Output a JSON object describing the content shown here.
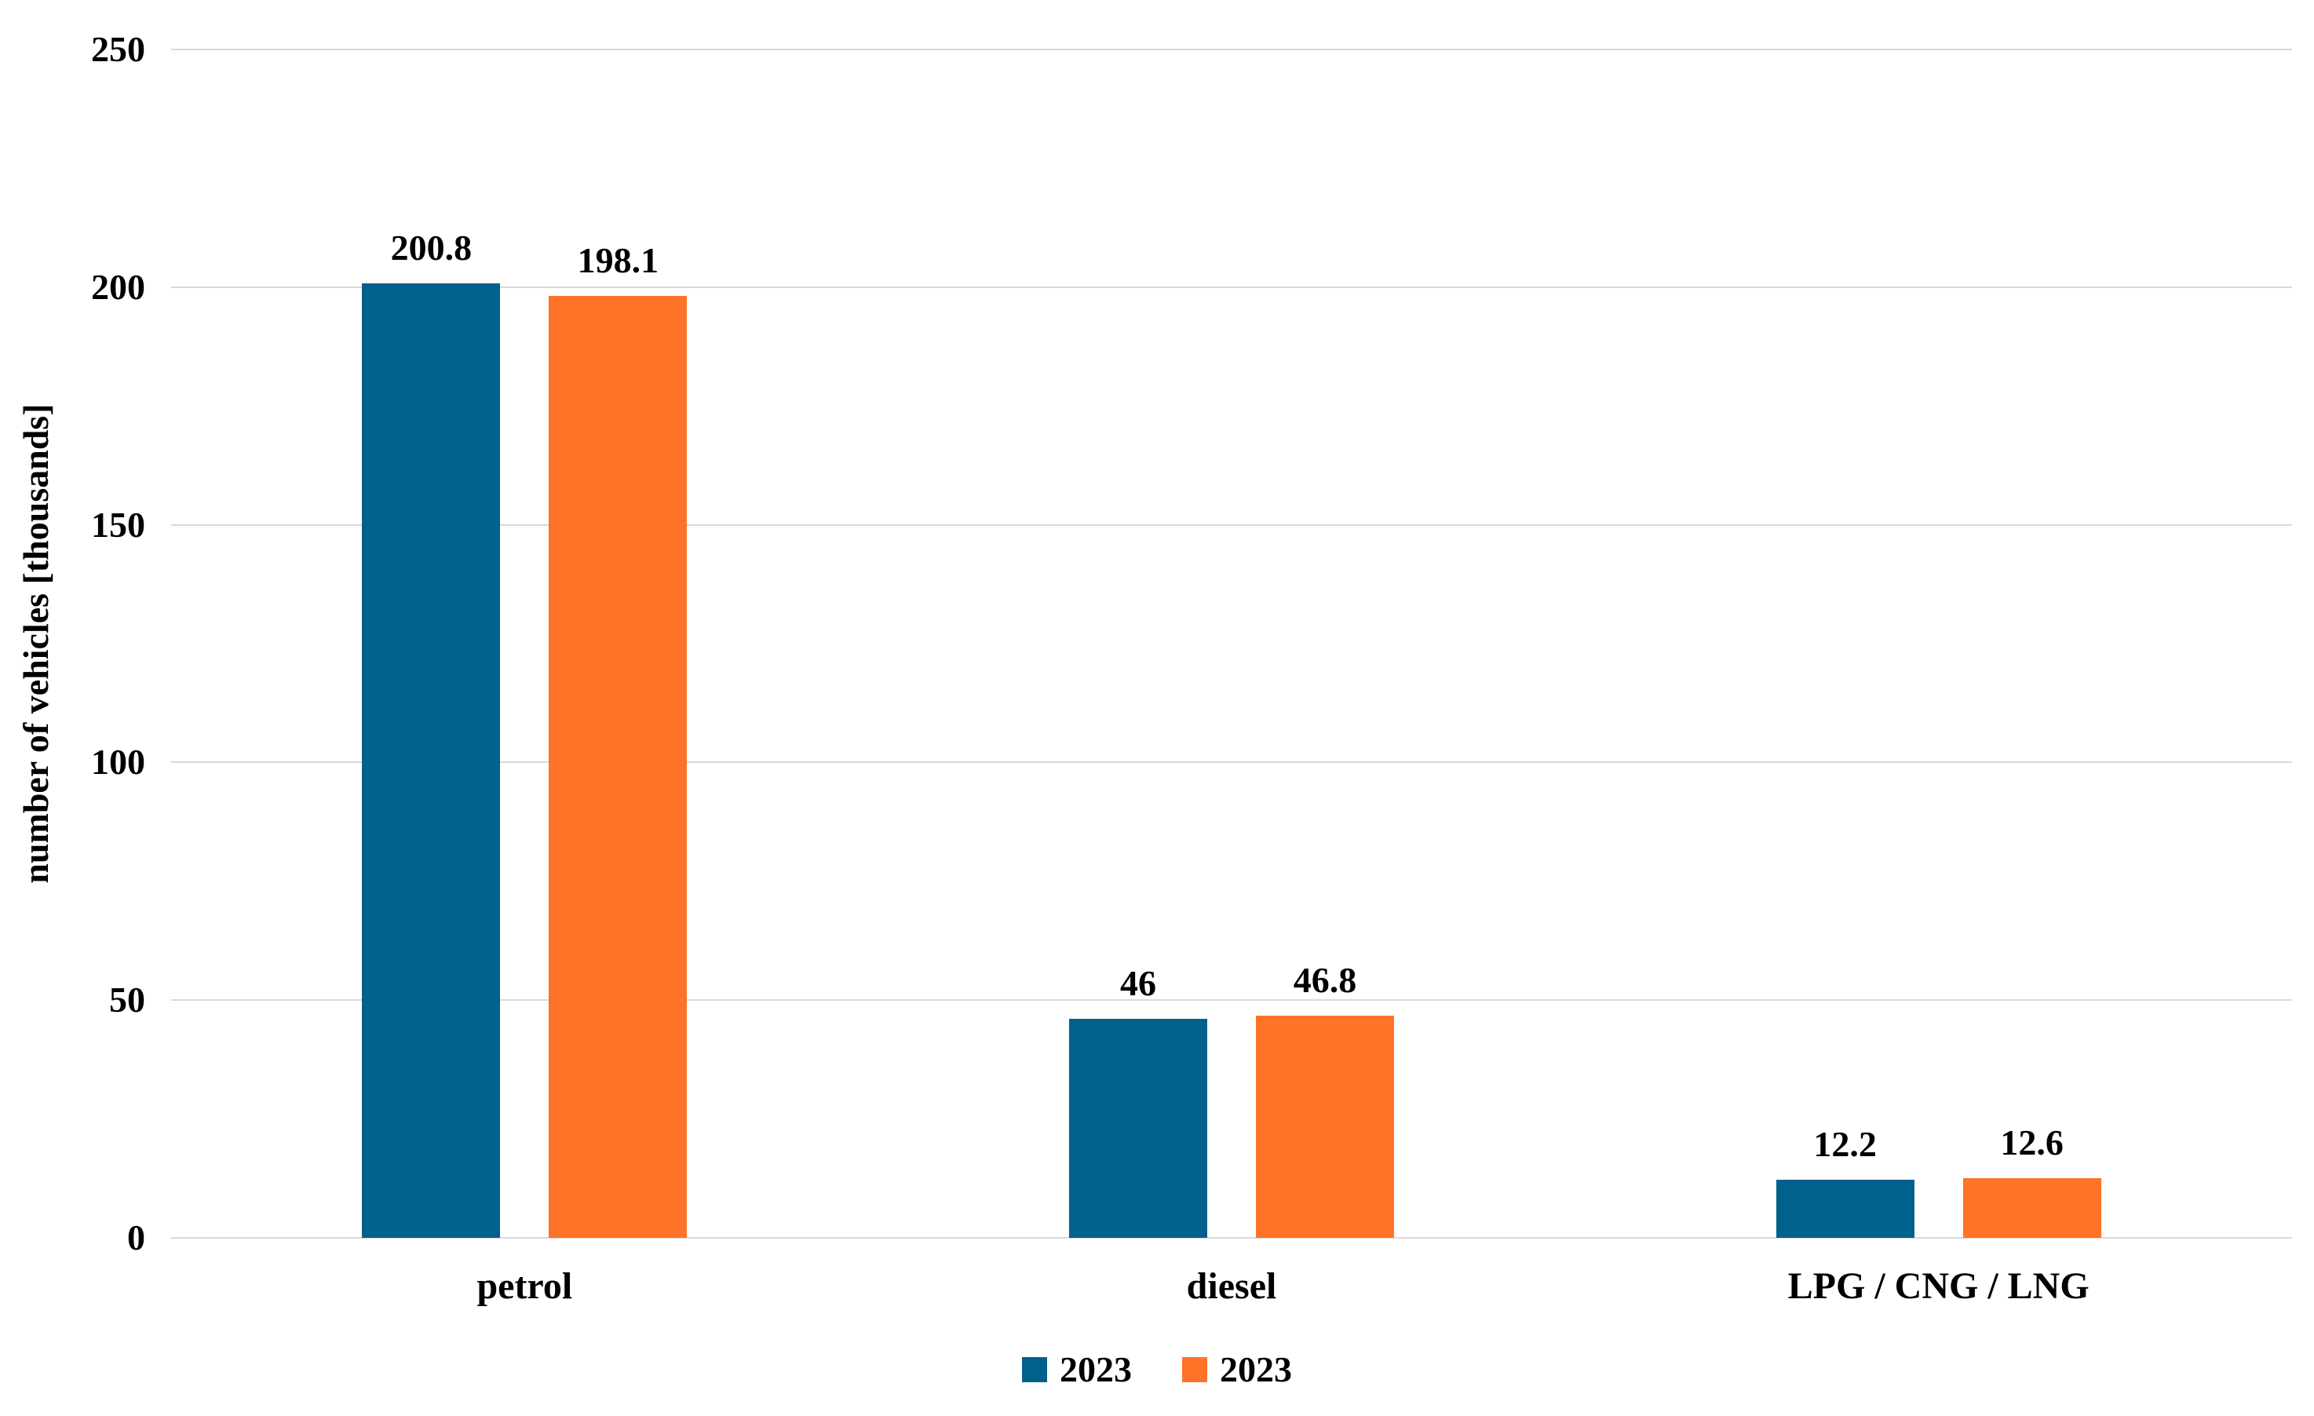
{
  "chart_data": {
    "type": "bar",
    "title": "",
    "categories": [
      "petrol",
      "diesel",
      "LPG / CNG / LNG"
    ],
    "series": [
      {
        "name": "2023",
        "color": "#00618c",
        "values": [
          200.8,
          46,
          12.2
        ],
        "labels": [
          "200.8",
          "46",
          "12.2"
        ]
      },
      {
        "name": "2023",
        "color": "#fd7327",
        "values": [
          198.1,
          46.8,
          12.6
        ],
        "labels": [
          "198.1",
          "46.8",
          "12.6"
        ]
      }
    ],
    "xlabel": "",
    "ylabel": "number of vehicles [thousands]",
    "ylim": [
      0,
      250
    ],
    "yticks": [
      0,
      50,
      100,
      150,
      200,
      250
    ],
    "grid": "horizontal",
    "gridline_color": "#d9d9d9",
    "text_color": "#000000",
    "background_color": "#ffffff",
    "legend_position": "bottom"
  }
}
